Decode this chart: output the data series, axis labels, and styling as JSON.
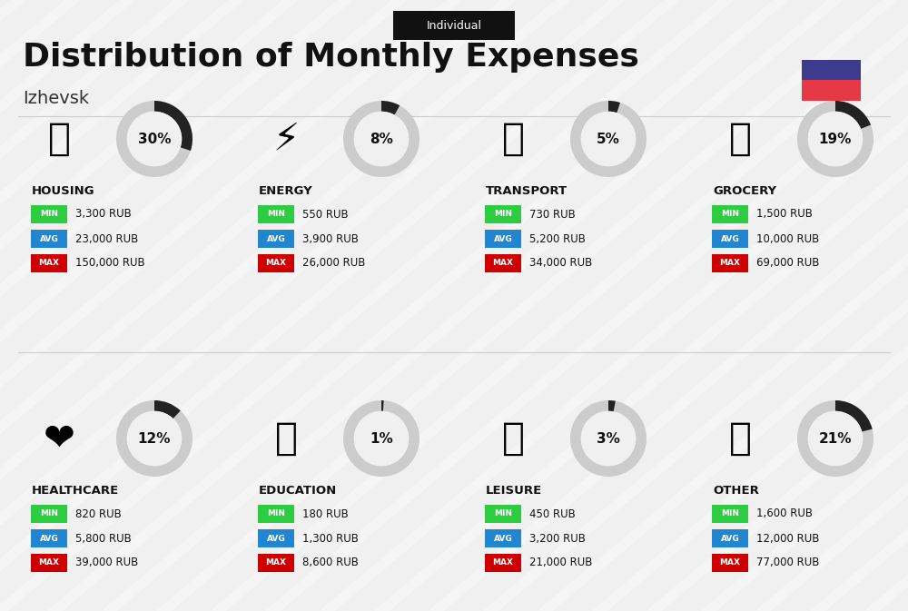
{
  "title": "Distribution of Monthly Expenses",
  "subtitle": "Individual",
  "city": "Izhevsk",
  "background_color": "#f0f0f0",
  "flag_colors": [
    "#3d3b8e",
    "#e63946"
  ],
  "categories": [
    {
      "name": "HOUSING",
      "pct": 30,
      "icon": "🏢",
      "min": "3,300 RUB",
      "avg": "23,000 RUB",
      "max": "150,000 RUB",
      "row": 0,
      "col": 0
    },
    {
      "name": "ENERGY",
      "pct": 8,
      "icon": "⚡",
      "min": "550 RUB",
      "avg": "3,900 RUB",
      "max": "26,000 RUB",
      "row": 0,
      "col": 1
    },
    {
      "name": "TRANSPORT",
      "pct": 5,
      "icon": "🚌",
      "min": "730 RUB",
      "avg": "5,200 RUB",
      "max": "34,000 RUB",
      "row": 0,
      "col": 2
    },
    {
      "name": "GROCERY",
      "pct": 19,
      "icon": "🛒",
      "min": "1,500 RUB",
      "avg": "10,000 RUB",
      "max": "69,000 RUB",
      "row": 0,
      "col": 3
    },
    {
      "name": "HEALTHCARE",
      "pct": 12,
      "icon": "❤",
      "min": "820 RUB",
      "avg": "5,800 RUB",
      "max": "39,000 RUB",
      "row": 1,
      "col": 0
    },
    {
      "name": "EDUCATION",
      "pct": 1,
      "icon": "🎓",
      "min": "180 RUB",
      "avg": "1,300 RUB",
      "max": "8,600 RUB",
      "row": 1,
      "col": 1
    },
    {
      "name": "LEISURE",
      "pct": 3,
      "icon": "🛍",
      "min": "450 RUB",
      "avg": "3,200 RUB",
      "max": "21,000 RUB",
      "row": 1,
      "col": 2
    },
    {
      "name": "OTHER",
      "pct": 21,
      "icon": "👜",
      "min": "1,600 RUB",
      "avg": "12,000 RUB",
      "max": "77,000 RUB",
      "row": 1,
      "col": 3
    }
  ],
  "min_color": "#2ecc40",
  "avg_color": "#2185d0",
  "max_color": "#cc0000",
  "label_color_min": "#ffffff",
  "donut_filled_color": "#222222",
  "donut_empty_color": "#cccccc",
  "donut_bg_color": "#ffffff"
}
